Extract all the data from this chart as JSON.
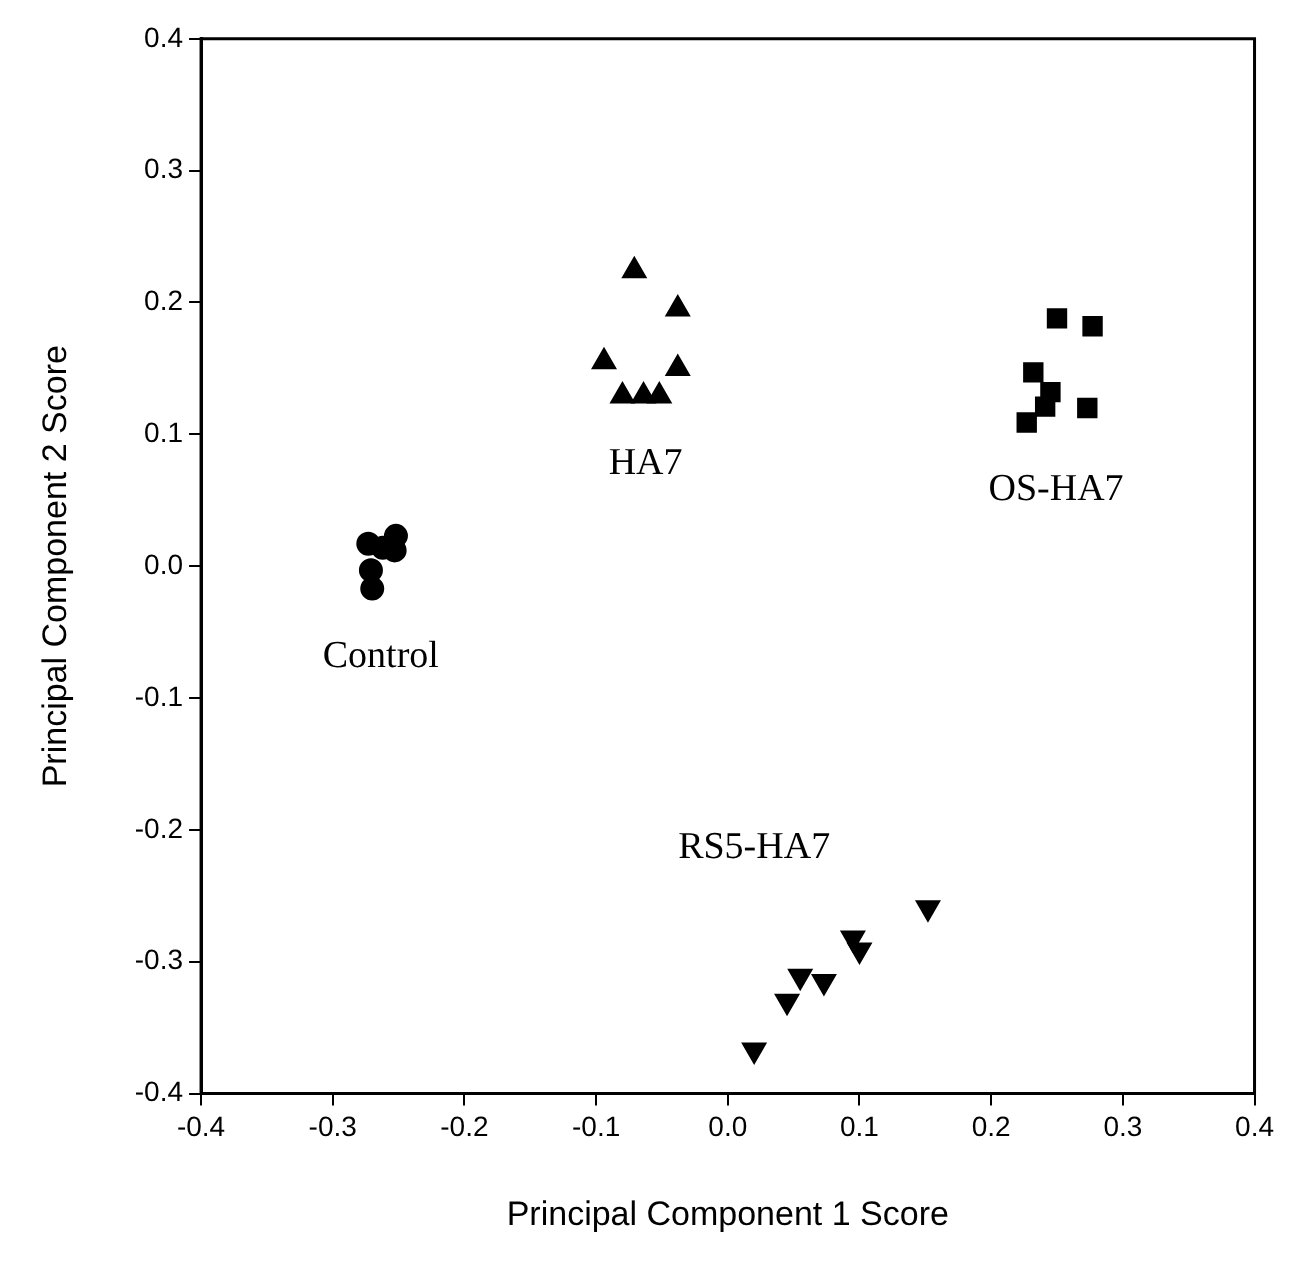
{
  "chart_data": {
    "type": "scatter",
    "xlabel": "Principal Component 1 Score",
    "ylabel": "Principal Component 2 Score",
    "xlim": [
      -0.4,
      0.4
    ],
    "xticks": [
      -0.4,
      -0.3,
      -0.2,
      -0.1,
      {
        "value": 0,
        "label": "0.0"
      },
      0.1,
      0.2,
      0.3,
      0.4
    ],
    "ylim": [
      -0.4,
      0.4
    ],
    "yticks": [
      -0.4,
      -0.3,
      -0.2,
      -0.1,
      {
        "value": 0,
        "label": "0.0"
      },
      0.1,
      0.2,
      0.3,
      0.4
    ],
    "grid": false,
    "legend": false,
    "series": [
      {
        "name": "Control",
        "color": "#000000",
        "marker": "circle",
        "x": [
          -0.273,
          -0.262,
          -0.252,
          -0.253,
          -0.271,
          -0.27
        ],
        "values": [
          0.017,
          0.014,
          0.023,
          0.012,
          -0.003,
          -0.017
        ]
      },
      {
        "name": "HA7",
        "color": "#000000",
        "marker": "triangle",
        "x": [
          -0.071,
          -0.038,
          -0.094,
          -0.038,
          -0.08,
          -0.064,
          -0.052
        ],
        "values": [
          0.224,
          0.195,
          0.155,
          0.15,
          0.129,
          0.129,
          0.129
        ]
      },
      {
        "name": "OS-HA7",
        "color": "#000000",
        "marker": "square",
        "x": [
          0.25,
          0.277,
          0.232,
          0.245,
          0.241,
          0.273,
          0.227
        ],
        "values": [
          0.188,
          0.182,
          0.147,
          0.132,
          0.121,
          0.12,
          0.109
        ]
      },
      {
        "name": "RS5-HA7",
        "color": "#000000",
        "marker": "triangle-down",
        "x": [
          0.152,
          0.095,
          0.1,
          0.055,
          0.073,
          0.045,
          0.02
        ],
        "values": [
          -0.259,
          -0.282,
          -0.291,
          -0.311,
          -0.315,
          -0.33,
          -0.367
        ]
      }
    ]
  }
}
